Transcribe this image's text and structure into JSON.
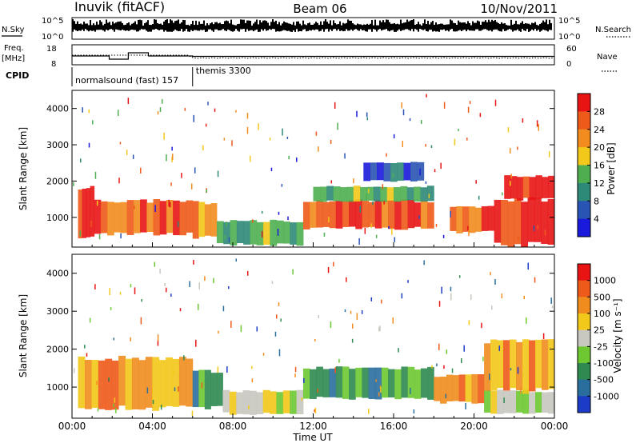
{
  "header": {
    "station": "Inuvik (fitACF)",
    "beam": "Beam 06",
    "date": "10/Nov/2011"
  },
  "noise_panel": {
    "left_label": "N.Sky",
    "left_ticks": [
      "10^5",
      "10^0"
    ],
    "right_label": "N.Search",
    "right_ticks": [
      "10^5",
      "10^0"
    ]
  },
  "freq_panel": {
    "left_label_1": "Freq.",
    "left_label_2": "[MHz]",
    "left_ticks": [
      "18",
      "8"
    ],
    "right_label": "Nave",
    "right_ticks": [
      "60",
      "0"
    ]
  },
  "cpid": {
    "label": "CPID",
    "programs": [
      {
        "name": "normalsound (fast) 157",
        "start_hour": 0,
        "end_hour": 6.0
      },
      {
        "name": "themis 3300",
        "start_hour": 6.0,
        "end_hour": 24
      }
    ]
  },
  "chart_data": [
    {
      "type": "heatmap",
      "title": "",
      "quantity": "Power",
      "ylabel": "Slant Range [km]",
      "xlabel": "",
      "xlim": [
        0,
        24
      ],
      "ylim": [
        180,
        4500
      ],
      "yticks": [
        1000,
        2000,
        3000,
        4000
      ],
      "colorbar": {
        "label": "Power [dB]",
        "ticks": [
          4,
          8,
          12,
          16,
          20,
          24,
          28
        ],
        "range": [
          0,
          32
        ],
        "colors": [
          "#1a1adc",
          "#2a54b4",
          "#2e8a78",
          "#4faf50",
          "#f2c81a",
          "#f28c1e",
          "#ee5a1a",
          "#e81414"
        ]
      },
      "bands": [
        {
          "x0": 0.3,
          "x1": 1.1,
          "y0": 450,
          "y1": 1800,
          "level": 7
        },
        {
          "x0": 1.1,
          "x1": 6.0,
          "y0": 550,
          "y1": 1450,
          "level": 6
        },
        {
          "x0": 6.0,
          "x1": 7.2,
          "y0": 450,
          "y1": 1400,
          "level": 5
        },
        {
          "x0": 7.2,
          "x1": 11.5,
          "y0": 250,
          "y1": 900,
          "level": 3
        },
        {
          "x0": 11.5,
          "x1": 18.0,
          "y0": 700,
          "y1": 1450,
          "level": 6
        },
        {
          "x0": 12.0,
          "x1": 18.0,
          "y0": 1450,
          "y1": 1850,
          "level": 3
        },
        {
          "x0": 14.5,
          "x1": 17.5,
          "y0": 2000,
          "y1": 2500,
          "level": 1
        },
        {
          "x0": 18.8,
          "x1": 21.0,
          "y0": 600,
          "y1": 1300,
          "level": 6
        },
        {
          "x0": 21.0,
          "x1": 24.0,
          "y0": 250,
          "y1": 1500,
          "level": 7
        },
        {
          "x0": 21.5,
          "x1": 24.0,
          "y0": 1500,
          "y1": 2150,
          "level": 7
        }
      ]
    },
    {
      "type": "heatmap",
      "title": "",
      "quantity": "Velocity",
      "ylabel": "Slant Range [km]",
      "xlabel": "Time UT",
      "xlim": [
        0,
        24
      ],
      "ylim": [
        180,
        4500
      ],
      "yticks": [
        1000,
        2000,
        3000,
        4000
      ],
      "xticks": [
        "00:00",
        "04:00",
        "08:00",
        "12:00",
        "16:00",
        "20:00",
        "00:00"
      ],
      "colorbar": {
        "label": "Velocity [m s⁻¹]",
        "ticks": [
          "1000",
          "500",
          "100",
          "25",
          "-25",
          "-100",
          "-500",
          "-1000"
        ],
        "colors": [
          "#1c3cc8",
          "#2a6e9e",
          "#2e8a50",
          "#6ec832",
          "#c8c8c0",
          "#f2c81a",
          "#f08c1e",
          "#ee5a1a",
          "#e81414"
        ]
      },
      "bands": [
        {
          "x0": 0.3,
          "x1": 6.0,
          "y0": 450,
          "y1": 1750,
          "level": 6
        },
        {
          "x0": 6.0,
          "x1": 7.5,
          "y0": 450,
          "y1": 1400,
          "level": 2
        },
        {
          "x0": 7.5,
          "x1": 11.5,
          "y0": 300,
          "y1": 900,
          "level": 4
        },
        {
          "x0": 11.5,
          "x1": 18.0,
          "y0": 700,
          "y1": 1500,
          "level": 2
        },
        {
          "x0": 18.0,
          "x1": 20.5,
          "y0": 600,
          "y1": 1300,
          "level": 6
        },
        {
          "x0": 20.5,
          "x1": 24.0,
          "y0": 300,
          "y1": 900,
          "level": 4
        },
        {
          "x0": 20.5,
          "x1": 24.0,
          "y0": 900,
          "y1": 2200,
          "level": 6
        }
      ]
    }
  ]
}
